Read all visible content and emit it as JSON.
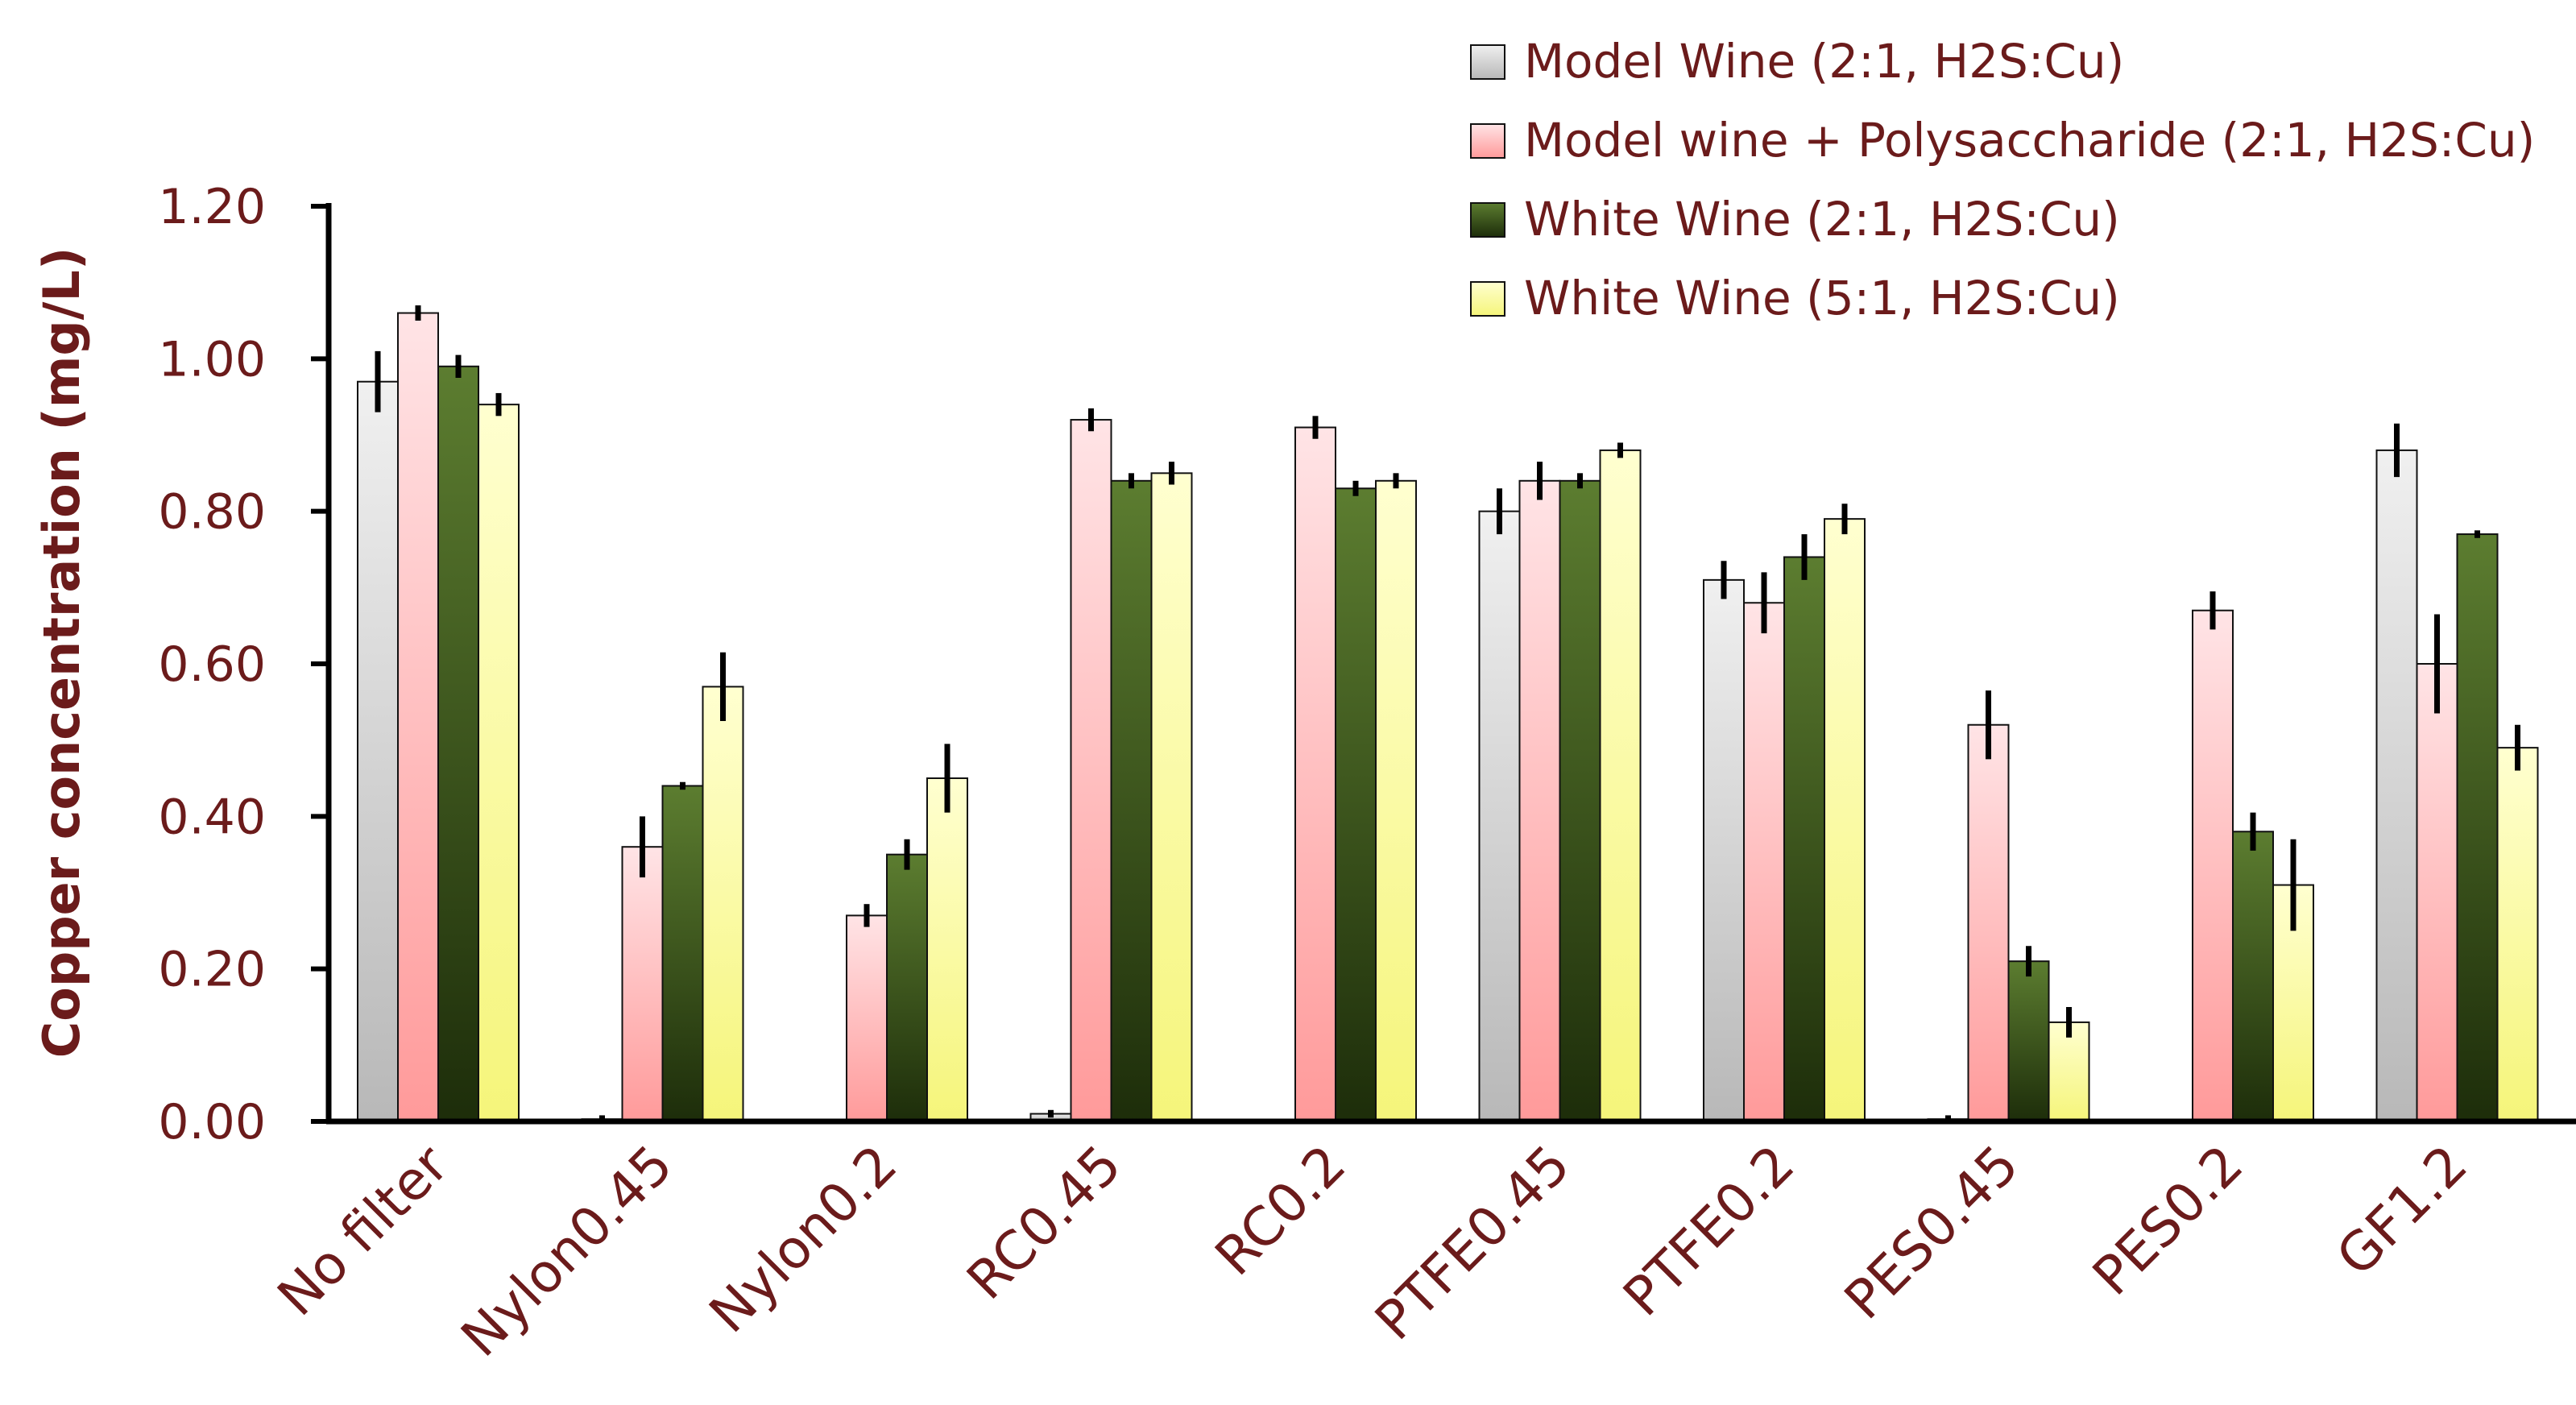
{
  "chart_data": {
    "type": "bar",
    "title": "",
    "xlabel": "",
    "ylabel": "Copper concentration (mg/L)",
    "ylim": [
      0,
      1.2
    ],
    "yticks": [
      "0.00",
      "0.20",
      "0.40",
      "0.60",
      "0.80",
      "1.00",
      "1.20"
    ],
    "legend_position": "top-right",
    "categories": [
      "No filter",
      "Nylon0.45",
      "Nylon0.2",
      "RC0.45",
      "RC0.2",
      "PTFE0.45",
      "PTFE0.2",
      "PES0.45",
      "PES0.2",
      "GF1.2"
    ],
    "series": [
      {
        "name": "Model Wine (2:1, H2S:Cu)",
        "color_top": "#f0f0f0",
        "color_bottom": "#b8b8b8",
        "values": [
          0.97,
          0.003,
          0.002,
          0.01,
          0.002,
          0.8,
          0.71,
          0.003,
          0.002,
          0.88
        ],
        "errors": [
          0.04,
          0.005,
          0.0,
          0.005,
          0.0,
          0.03,
          0.025,
          0.005,
          0.0,
          0.035
        ]
      },
      {
        "name": "Model wine + Polysaccharide (2:1, H2S:Cu)",
        "color_top": "#ffe4e6",
        "color_bottom": "#ff9a9a",
        "values": [
          1.06,
          0.36,
          0.27,
          0.92,
          0.91,
          0.84,
          0.68,
          0.52,
          0.67,
          0.6
        ],
        "errors": [
          0.01,
          0.04,
          0.015,
          0.015,
          0.015,
          0.025,
          0.04,
          0.045,
          0.025,
          0.065
        ]
      },
      {
        "name": "White Wine (2:1, H2S:Cu)",
        "color_top": "#5c7d30",
        "color_bottom": "#1d2d0a",
        "values": [
          0.99,
          0.44,
          0.35,
          0.84,
          0.83,
          0.84,
          0.74,
          0.21,
          0.38,
          0.77
        ],
        "errors": [
          0.015,
          0.005,
          0.02,
          0.01,
          0.01,
          0.01,
          0.03,
          0.02,
          0.025,
          0.005
        ]
      },
      {
        "name": "White Wine (5:1, H2S:Cu)",
        "color_top": "#ffffd0",
        "color_bottom": "#f5f57a",
        "values": [
          0.94,
          0.57,
          0.45,
          0.85,
          0.84,
          0.88,
          0.79,
          0.13,
          0.31,
          0.49
        ],
        "errors": [
          0.015,
          0.045,
          0.045,
          0.015,
          0.01,
          0.01,
          0.02,
          0.02,
          0.06,
          0.03
        ]
      }
    ]
  }
}
